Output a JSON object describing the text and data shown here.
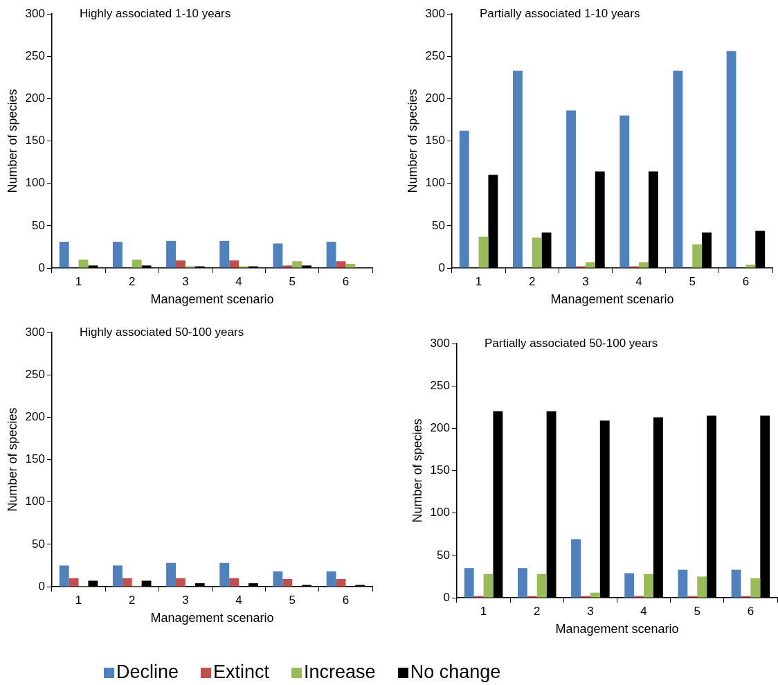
{
  "chart_data": [
    {
      "type": "bar",
      "title": "Highly associated 1-10 years",
      "xlabel": "Management scenario",
      "ylabel": "Number of species",
      "categories": [
        "1",
        "2",
        "3",
        "4",
        "5",
        "6"
      ],
      "ylim": [
        0,
        300
      ],
      "yticks": [
        0,
        50,
        100,
        150,
        200,
        250,
        300
      ],
      "grid": false,
      "legend": "bottom",
      "series": [
        {
          "name": "Decline",
          "color": "#4f81bd",
          "values": [
            31,
            31,
            32,
            32,
            29,
            31
          ]
        },
        {
          "name": "Extinct",
          "color": "#c0504d",
          "values": [
            0,
            0,
            9,
            9,
            3,
            8
          ]
        },
        {
          "name": "Increase",
          "color": "#9bbb59",
          "values": [
            10,
            10,
            2,
            2,
            8,
            5
          ]
        },
        {
          "name": "No change",
          "color": "#000000",
          "values": [
            3,
            3,
            2,
            2,
            3,
            0
          ]
        }
      ]
    },
    {
      "type": "bar",
      "title": "Partially associated 1-10 years",
      "xlabel": "Management scenario",
      "ylabel": "Number of species",
      "categories": [
        "1",
        "2",
        "3",
        "4",
        "5",
        "6"
      ],
      "ylim": [
        0,
        300
      ],
      "yticks": [
        0,
        50,
        100,
        150,
        200,
        250,
        300
      ],
      "grid": false,
      "series": [
        {
          "color": "#4f81bd",
          "values": [
            162,
            233,
            186,
            180,
            233,
            256
          ]
        },
        {
          "color": "#c0504d",
          "values": [
            0,
            0,
            2,
            2,
            0,
            0
          ]
        },
        {
          "color": "#9bbb59",
          "values": [
            37,
            36,
            7,
            7,
            28,
            4
          ]
        },
        {
          "color": "#000000",
          "values": [
            110,
            42,
            114,
            114,
            42,
            44
          ]
        }
      ]
    },
    {
      "type": "bar",
      "title": "Highly associated 50-100 years",
      "xlabel": "Management scenario",
      "ylabel": "Number of species",
      "categories": [
        "1",
        "2",
        "3",
        "4",
        "5",
        "6"
      ],
      "ylim": [
        0,
        300
      ],
      "yticks": [
        0,
        50,
        100,
        150,
        200,
        250,
        300
      ],
      "grid": false,
      "series": [
        {
          "color": "#4f81bd",
          "values": [
            25,
            25,
            28,
            28,
            18,
            18
          ]
        },
        {
          "color": "#c0504d",
          "values": [
            10,
            10,
            10,
            10,
            9,
            9
          ]
        },
        {
          "color": "#9bbb59",
          "values": [
            1,
            1,
            0,
            0,
            0,
            0
          ]
        },
        {
          "color": "#000000",
          "values": [
            7,
            7,
            4,
            4,
            2,
            2
          ]
        }
      ]
    },
    {
      "type": "bar",
      "title": "Partially associated 50-100 years",
      "xlabel": "Management scenario",
      "ylabel": "Number of species",
      "categories": [
        "1",
        "2",
        "3",
        "4",
        "5",
        "6"
      ],
      "ylim": [
        0,
        300
      ],
      "yticks": [
        0,
        50,
        100,
        150,
        200,
        250,
        300
      ],
      "grid": false,
      "series": [
        {
          "color": "#4f81bd",
          "values": [
            35,
            35,
            69,
            29,
            33,
            33
          ]
        },
        {
          "color": "#c0504d",
          "values": [
            2,
            2,
            2,
            2,
            2,
            2
          ]
        },
        {
          "color": "#9bbb59",
          "values": [
            28,
            28,
            6,
            28,
            25,
            23
          ]
        },
        {
          "color": "#000000",
          "values": [
            220,
            220,
            209,
            213,
            215,
            215
          ]
        }
      ]
    }
  ]
}
